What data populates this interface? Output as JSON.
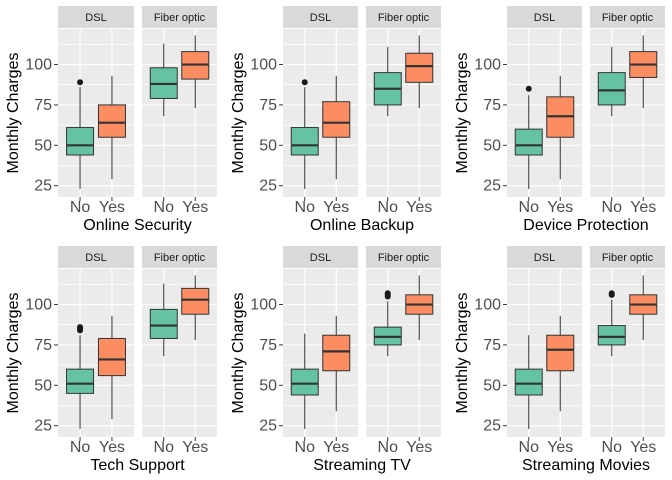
{
  "chart_data": [
    {
      "type": "boxplot",
      "facets": [
        "DSL",
        "Fiber optic"
      ],
      "categories": [
        "No",
        "Yes"
      ],
      "xlabel": "Online Security",
      "ylabel": "Monthly Charges",
      "ylim": [
        18,
        122
      ],
      "yticks": [
        25,
        50,
        75,
        100
      ],
      "boxes": {
        "DSL": [
          {
            "category": "No",
            "min": 23,
            "q1": 44,
            "median": 50,
            "q3": 61,
            "max": 86,
            "outliers": [
              89
            ]
          },
          {
            "category": "Yes",
            "min": 29,
            "q1": 55,
            "median": 64,
            "q3": 75,
            "max": 93,
            "outliers": []
          }
        ],
        "Fiber optic": [
          {
            "category": "No",
            "min": 68,
            "q1": 79,
            "median": 88,
            "q3": 98,
            "max": 113,
            "outliers": []
          },
          {
            "category": "Yes",
            "min": 73,
            "q1": 91,
            "median": 100,
            "q3": 108,
            "max": 118,
            "outliers": []
          }
        ]
      }
    },
    {
      "type": "boxplot",
      "facets": [
        "DSL",
        "Fiber optic"
      ],
      "categories": [
        "No",
        "Yes"
      ],
      "xlabel": "Online Backup",
      "ylabel": "Monthly Charges",
      "ylim": [
        18,
        122
      ],
      "yticks": [
        25,
        50,
        75,
        100
      ],
      "boxes": {
        "DSL": [
          {
            "category": "No",
            "min": 23,
            "q1": 44,
            "median": 50,
            "q3": 61,
            "max": 86,
            "outliers": [
              89
            ]
          },
          {
            "category": "Yes",
            "min": 29,
            "q1": 55,
            "median": 64,
            "q3": 77,
            "max": 93,
            "outliers": []
          }
        ],
        "Fiber optic": [
          {
            "category": "No",
            "min": 68,
            "q1": 75,
            "median": 85,
            "q3": 95,
            "max": 111,
            "outliers": []
          },
          {
            "category": "Yes",
            "min": 73,
            "q1": 89,
            "median": 99,
            "q3": 107,
            "max": 118,
            "outliers": []
          }
        ]
      }
    },
    {
      "type": "boxplot",
      "facets": [
        "DSL",
        "Fiber optic"
      ],
      "categories": [
        "No",
        "Yes"
      ],
      "xlabel": "Device Protection",
      "ylabel": "Monthly Charges",
      "ylim": [
        18,
        122
      ],
      "yticks": [
        25,
        50,
        75,
        100
      ],
      "boxes": {
        "DSL": [
          {
            "category": "No",
            "min": 23,
            "q1": 44,
            "median": 50,
            "q3": 60,
            "max": 81,
            "outliers": [
              85
            ]
          },
          {
            "category": "Yes",
            "min": 29,
            "q1": 55,
            "median": 68,
            "q3": 80,
            "max": 93,
            "outliers": []
          }
        ],
        "Fiber optic": [
          {
            "category": "No",
            "min": 68,
            "q1": 75,
            "median": 84,
            "q3": 95,
            "max": 111,
            "outliers": []
          },
          {
            "category": "Yes",
            "min": 73,
            "q1": 92,
            "median": 100,
            "q3": 108,
            "max": 118,
            "outliers": []
          }
        ]
      }
    },
    {
      "type": "boxplot",
      "facets": [
        "DSL",
        "Fiber optic"
      ],
      "categories": [
        "No",
        "Yes"
      ],
      "xlabel": "Tech Support",
      "ylabel": "Monthly Charges",
      "ylim": [
        18,
        122
      ],
      "yticks": [
        25,
        50,
        75,
        100
      ],
      "boxes": {
        "DSL": [
          {
            "category": "No",
            "min": 23,
            "q1": 45,
            "median": 51,
            "q3": 60,
            "max": 81,
            "outliers": [
              84,
              85,
              86
            ]
          },
          {
            "category": "Yes",
            "min": 29,
            "q1": 56,
            "median": 66,
            "q3": 79,
            "max": 93,
            "outliers": []
          }
        ],
        "Fiber optic": [
          {
            "category": "No",
            "min": 68,
            "q1": 79,
            "median": 87,
            "q3": 97,
            "max": 113,
            "outliers": []
          },
          {
            "category": "Yes",
            "min": 78,
            "q1": 94,
            "median": 103,
            "q3": 110,
            "max": 118,
            "outliers": []
          }
        ]
      }
    },
    {
      "type": "boxplot",
      "facets": [
        "DSL",
        "Fiber optic"
      ],
      "categories": [
        "No",
        "Yes"
      ],
      "xlabel": "Streaming TV",
      "ylabel": "Monthly Charges",
      "ylim": [
        18,
        122
      ],
      "yticks": [
        25,
        50,
        75,
        100
      ],
      "boxes": {
        "DSL": [
          {
            "category": "No",
            "min": 23,
            "q1": 44,
            "median": 51,
            "q3": 60,
            "max": 82,
            "outliers": []
          },
          {
            "category": "Yes",
            "min": 34,
            "q1": 59,
            "median": 71,
            "q3": 81,
            "max": 93,
            "outliers": []
          }
        ],
        "Fiber optic": [
          {
            "category": "No",
            "min": 68,
            "q1": 75,
            "median": 80,
            "q3": 86,
            "max": 102,
            "outliers": [
              105,
              106,
              107
            ]
          },
          {
            "category": "Yes",
            "min": 78,
            "q1": 94,
            "median": 100,
            "q3": 106,
            "max": 118,
            "outliers": []
          }
        ]
      }
    },
    {
      "type": "boxplot",
      "facets": [
        "DSL",
        "Fiber optic"
      ],
      "categories": [
        "No",
        "Yes"
      ],
      "xlabel": "Streaming Movies",
      "ylabel": "Monthly Charges",
      "ylim": [
        18,
        122
      ],
      "yticks": [
        25,
        50,
        75,
        100
      ],
      "boxes": {
        "DSL": [
          {
            "category": "No",
            "min": 23,
            "q1": 44,
            "median": 51,
            "q3": 60,
            "max": 81,
            "outliers": []
          },
          {
            "category": "Yes",
            "min": 34,
            "q1": 59,
            "median": 72,
            "q3": 81,
            "max": 93,
            "outliers": []
          }
        ],
        "Fiber optic": [
          {
            "category": "No",
            "min": 68,
            "q1": 75,
            "median": 80,
            "q3": 87,
            "max": 103,
            "outliers": [
              106,
              107
            ]
          },
          {
            "category": "Yes",
            "min": 78,
            "q1": 94,
            "median": 100,
            "q3": 106,
            "max": 118,
            "outliers": []
          }
        ]
      }
    }
  ],
  "style": {
    "panel_background": "#ebebeb",
    "strip_background": "#d9d9d9",
    "grid_color": "#ffffff",
    "series_colors": {
      "No": "#66c2a5",
      "Yes": "#fc8d62"
    },
    "box_line_color": "#333333",
    "outlier_color": "#1a1a1a",
    "legend": "none",
    "grid": true
  }
}
